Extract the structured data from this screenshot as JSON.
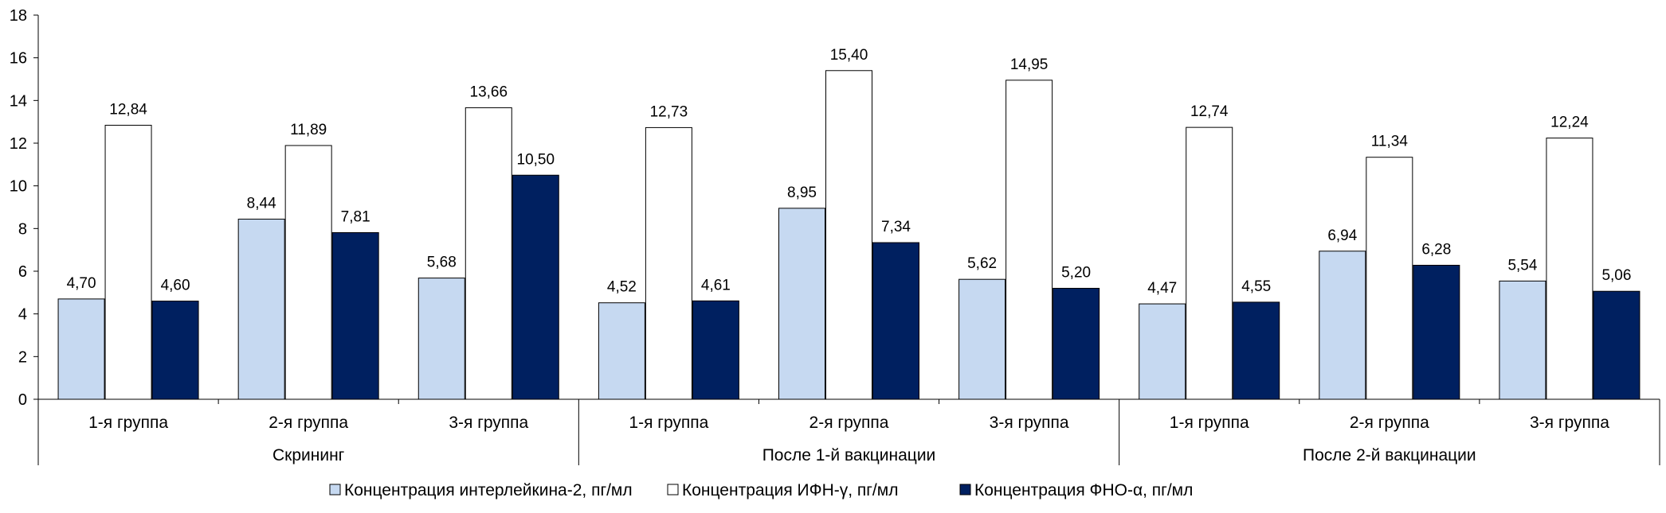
{
  "chart_data": {
    "type": "bar",
    "title": "",
    "xlabel": "",
    "ylabel": "",
    "ylim": [
      0,
      18
    ],
    "yticks": [
      "0",
      "2",
      "4",
      "6",
      "8",
      "10",
      "12",
      "14",
      "16",
      "18"
    ],
    "ytick_values": [
      0,
      2,
      4,
      6,
      8,
      10,
      12,
      14,
      16,
      18
    ],
    "grid": false,
    "legend_position": "bottom",
    "groups": [
      "Скрининг",
      "После 1-й вакцинации",
      "После 2-й вакцинации"
    ],
    "categories": [
      "1-я группа",
      "2-я группа",
      "3-я группа",
      "1-я группа",
      "2-я группа",
      "3-я группа",
      "1-я группа",
      "2-я группа",
      "3-я группа"
    ],
    "series": [
      {
        "name": "Концентрация интерлейкина-2, пг/мл",
        "color": "#c6d9f1",
        "values": [
          4.7,
          8.44,
          5.68,
          4.52,
          8.95,
          5.62,
          4.47,
          6.94,
          5.54
        ],
        "labels": [
          "4,70",
          "8,44",
          "5,68",
          "4,52",
          "8,95",
          "5,62",
          "4,47",
          "6,94",
          "5,54"
        ]
      },
      {
        "name": "Концентрация ИФН-γ, пг/мл",
        "color": "#ffffff",
        "values": [
          12.84,
          11.89,
          13.66,
          12.73,
          15.4,
          14.95,
          12.74,
          11.34,
          12.24
        ],
        "labels": [
          "12,84",
          "11,89",
          "13,66",
          "12,73",
          "15,40",
          "14,95",
          "12,74",
          "11,34",
          "12,24"
        ]
      },
      {
        "name": "Концентрация ФНО-α, пг/мл",
        "color": "#002060",
        "values": [
          4.6,
          7.81,
          10.5,
          4.61,
          7.34,
          5.2,
          4.55,
          6.28,
          5.06
        ],
        "labels": [
          "4,60",
          "7,81",
          "10,50",
          "4,61",
          "7,34",
          "5,20",
          "4,55",
          "6,28",
          "5,06"
        ]
      }
    ]
  }
}
